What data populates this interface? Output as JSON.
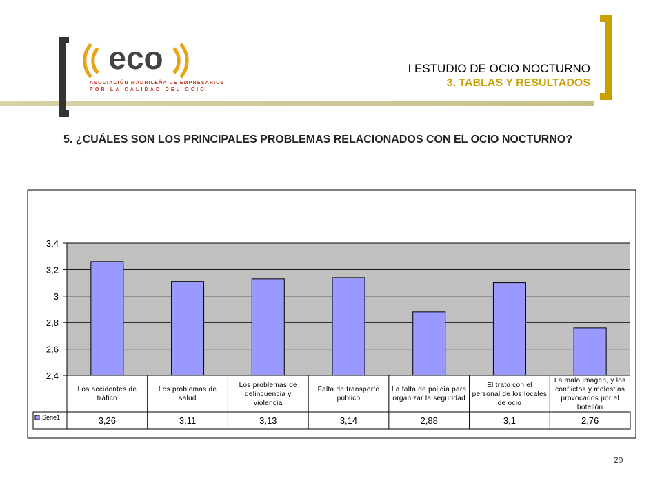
{
  "header": {
    "logo_text": "eco",
    "logo_line1": "ASOCIACIÓN MADRILEÑA DE EMPRESARIOS",
    "logo_line2": "POR LA CALIDAD DEL OCIO",
    "title": "I ESTUDIO DE OCIO NOCTURNO",
    "subtitle": "3. TABLAS Y RESULTADOS"
  },
  "question": "5. ¿CUÁLES SON LOS PRINCIPALES PROBLEMAS RELACIONADOS CON EL OCIO NOCTURNO?",
  "chart_data": {
    "type": "bar",
    "categories": [
      "Los accidentes de tráfico",
      "Los problemas de salud",
      "Los problemas de delincuencia y violencia",
      "Falta de transporte público",
      "La falta de policía para organizar la seguridad",
      "El trato con el personal de los locales de ocio",
      "La mala imagen, y los conflictos y molestias provocados por el botellón"
    ],
    "series": [
      {
        "name": "Serie1",
        "color": "#9999ff",
        "values": [
          3.26,
          3.11,
          3.13,
          3.14,
          2.88,
          3.1,
          2.76
        ],
        "value_labels": [
          "3,26",
          "3,11",
          "3,13",
          "3,14",
          "2,88",
          "3,1",
          "2,76"
        ]
      }
    ],
    "ylim": [
      2.4,
      3.4
    ],
    "yticks": [
      {
        "value": 2.4,
        "label": "2,4"
      },
      {
        "value": 2.6,
        "label": "2,6"
      },
      {
        "value": 2.8,
        "label": "2,8"
      },
      3,
      {
        "value": 3.2,
        "label": "3,2"
      },
      {
        "value": 3.4,
        "label": "3,4"
      }
    ],
    "grid": true
  },
  "page_number": "20"
}
